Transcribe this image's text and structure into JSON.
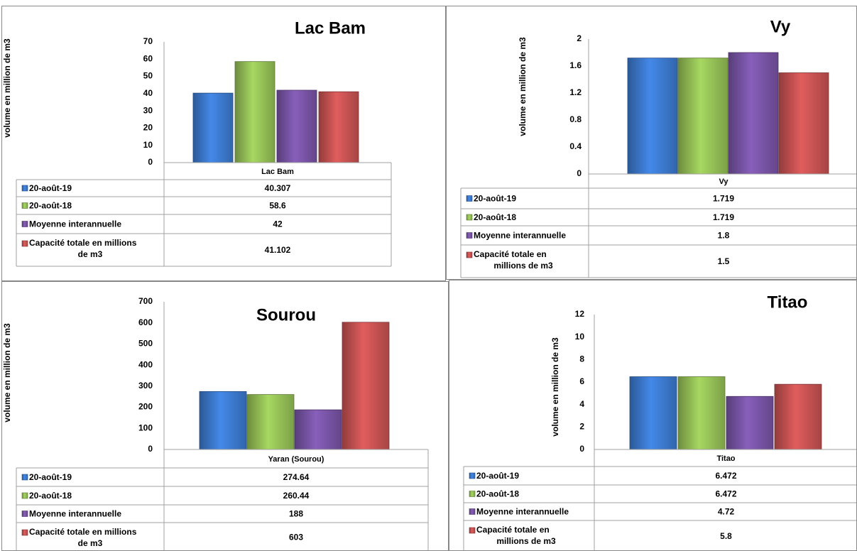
{
  "colors": {
    "blue": "#3f7fd8",
    "green": "#9bc85a",
    "purple": "#7e58ad",
    "red": "#d05656"
  },
  "chart_data": [
    {
      "type": "bar",
      "title": "Lac Bam",
      "ylabel": "volume en million de m3",
      "ylim": [
        0,
        70
      ],
      "yticks": [
        "0",
        "10",
        "20",
        "30",
        "40",
        "50",
        "60",
        "70"
      ],
      "categories": [
        "Lac Bam"
      ],
      "series": [
        {
          "name": "20-août-19",
          "values": [
            40.307
          ],
          "label": "40.307"
        },
        {
          "name": "20-août-18",
          "values": [
            58.6
          ],
          "label": "58.6"
        },
        {
          "name": "Moyenne interannuelle",
          "values": [
            42
          ],
          "label": "42"
        },
        {
          "name": "Capacité totale en millions de m3",
          "values": [
            41.102
          ],
          "label": "41.102"
        }
      ],
      "grid": false,
      "legend": "data-table"
    },
    {
      "type": "bar",
      "title": "Vy",
      "ylabel": "volume en million de m3",
      "ylim": [
        0,
        2
      ],
      "yticks": [
        "0",
        "0.4",
        "0.8",
        "1.2",
        "1.6",
        "2"
      ],
      "categories": [
        "Vy"
      ],
      "series": [
        {
          "name": "20-août-19",
          "values": [
            1.719
          ],
          "label": "1.719"
        },
        {
          "name": "20-août-18",
          "values": [
            1.719
          ],
          "label": "1.719"
        },
        {
          "name": "Moyenne interannuelle",
          "values": [
            1.8
          ],
          "label": "1.8"
        },
        {
          "name": "Capacité totale en millions de m3",
          "values": [
            1.5
          ],
          "label": "1.5"
        }
      ],
      "grid": false,
      "legend": "data-table"
    },
    {
      "type": "bar",
      "title": "Sourou",
      "ylabel": "volume en million de m3",
      "ylim": [
        0,
        700
      ],
      "yticks": [
        "0",
        "100",
        "200",
        "300",
        "400",
        "500",
        "600",
        "700"
      ],
      "categories": [
        "Yaran (Sourou)"
      ],
      "series": [
        {
          "name": "20-août-19",
          "values": [
            274.64
          ],
          "label": "274.64"
        },
        {
          "name": "20-août-18",
          "values": [
            260.44
          ],
          "label": "260.44"
        },
        {
          "name": "Moyenne interannuelle",
          "values": [
            188
          ],
          "label": "188"
        },
        {
          "name": "Capacité totale en millions de m3",
          "values": [
            603
          ],
          "label": "603"
        }
      ],
      "grid": false,
      "legend": "data-table"
    },
    {
      "type": "bar",
      "title": "Titao",
      "ylabel": "volume en million de m3",
      "ylim": [
        0,
        12
      ],
      "yticks": [
        "0",
        "2",
        "4",
        "6",
        "8",
        "10",
        "12"
      ],
      "categories": [
        "Titao"
      ],
      "series": [
        {
          "name": "20-août-19",
          "values": [
            6.472
          ],
          "label": "6.472"
        },
        {
          "name": "20-août-18",
          "values": [
            6.472
          ],
          "label": "6.472"
        },
        {
          "name": "Moyenne interannuelle",
          "values": [
            4.72
          ],
          "label": "4.72"
        },
        {
          "name": "Capacité totale en millions de m3",
          "values": [
            5.8
          ],
          "label": "5.8"
        }
      ],
      "grid": false,
      "legend": "data-table"
    }
  ]
}
